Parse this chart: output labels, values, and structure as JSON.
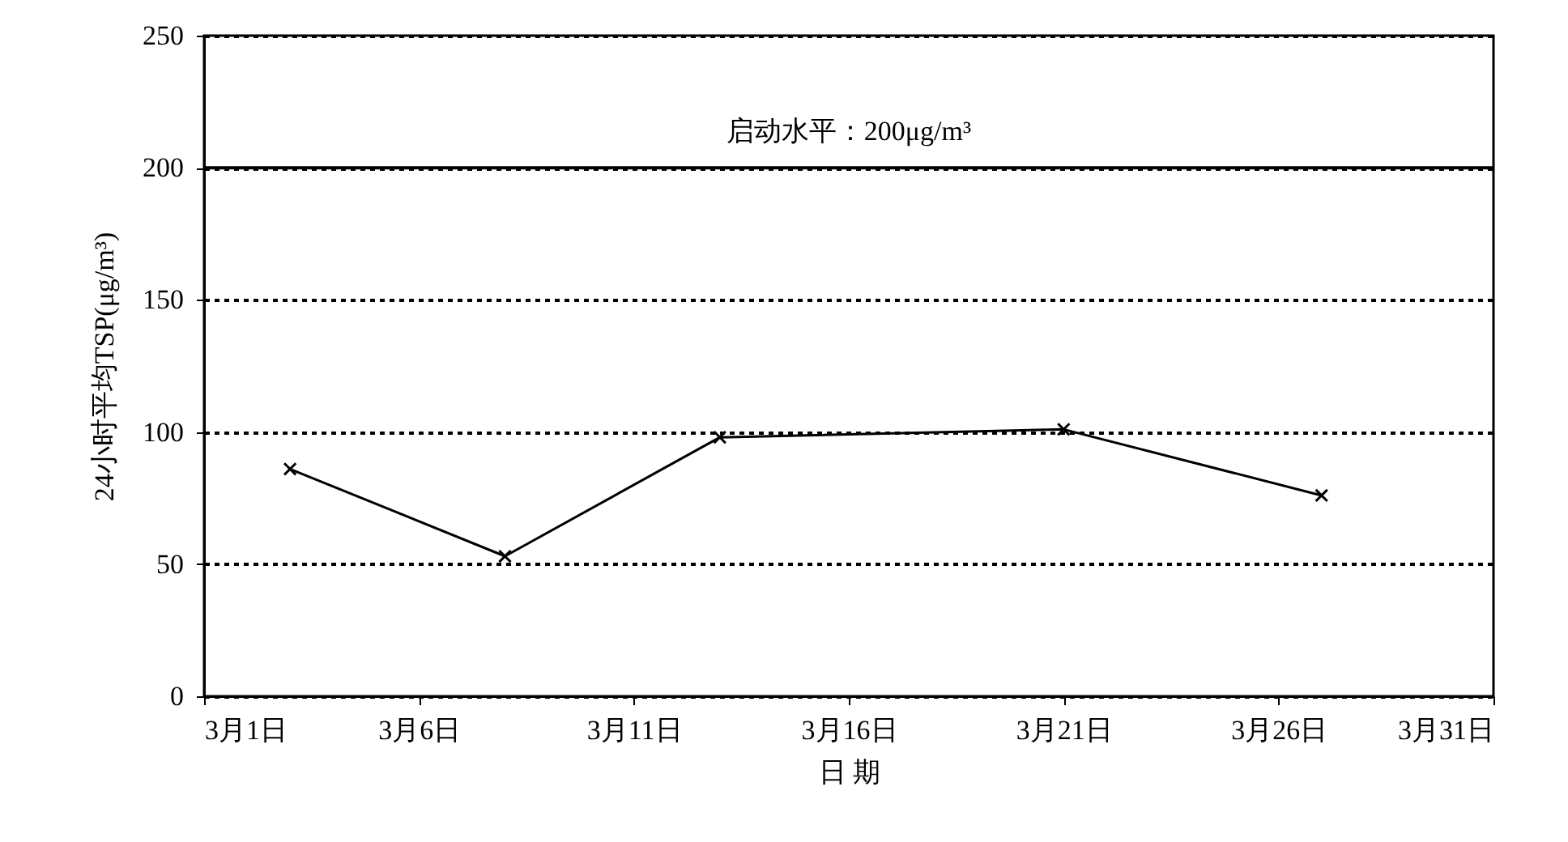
{
  "chart_data": {
    "type": "line",
    "xlabel": "日 期",
    "ylabel": "24小时平均TSP(μg/m³)",
    "x": [
      "--03-03",
      "--03-08",
      "--03-13",
      "--03-21",
      "--03-27"
    ],
    "series": [
      {
        "color": "#000000",
        "values": [
          86,
          53,
          98,
          101,
          76
        ]
      }
    ],
    "xlim": [
      "--03-01",
      "--03-31"
    ],
    "xticks": [
      {
        "value": "--03-01",
        "label": "3月1日"
      },
      {
        "value": "--03-06",
        "label": "3月6日"
      },
      {
        "value": "--03-11",
        "label": "3月11日"
      },
      {
        "value": "--03-16",
        "label": "3月16日"
      },
      {
        "value": "--03-21",
        "label": "3月21日"
      },
      {
        "value": "--03-26",
        "label": "3月26日"
      },
      {
        "value": "--03-31",
        "label": "3月31日"
      }
    ],
    "ylim": [
      0,
      250
    ],
    "yticks": [
      0,
      50,
      100,
      150,
      200,
      250
    ],
    "grid": "y",
    "marker": "cross",
    "line_style": "solid",
    "ref_lines": [
      {
        "axis": "y",
        "value": 200,
        "label": "启动水平：200μg/m³",
        "color": "#000000",
        "line_style": "solid"
      }
    ]
  }
}
